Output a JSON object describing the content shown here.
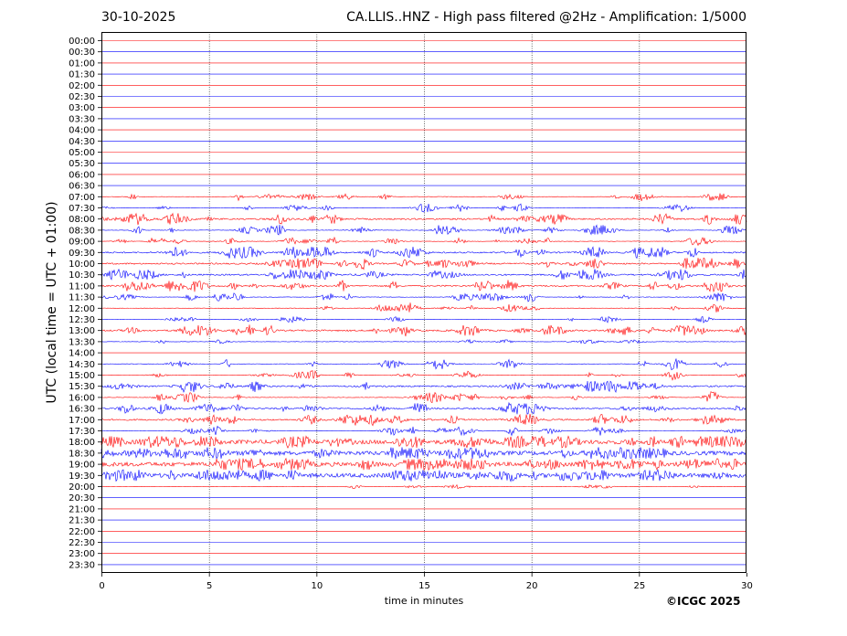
{
  "header": {
    "date": "30-10-2025",
    "title": "CA.LLIS..HNZ - High pass filtered @2Hz - Amplification: 1/5000"
  },
  "footer": {
    "copyright": "©ICGC 2025"
  },
  "chart_data": {
    "type": "seismogram helicorder",
    "xlabel": "time in minutes",
    "ylabel": "UTC (local time = UTC + 01:00)",
    "xlim": [
      0,
      30
    ],
    "xticks": [
      "0",
      "5",
      "10",
      "15",
      "20",
      "25",
      "30"
    ],
    "vertical_gridlines_at": [
      5,
      10,
      15,
      20,
      25
    ],
    "row_labels": [
      "00:00",
      "00:30",
      "01:00",
      "01:30",
      "02:00",
      "02:30",
      "03:00",
      "03:30",
      "04:00",
      "04:30",
      "05:00",
      "05:30",
      "06:00",
      "06:30",
      "07:00",
      "07:30",
      "08:00",
      "08:30",
      "09:00",
      "09:30",
      "10:00",
      "10:30",
      "11:00",
      "11:30",
      "12:00",
      "12:30",
      "13:00",
      "13:30",
      "14:00",
      "14:30",
      "15:00",
      "15:30",
      "16:00",
      "16:30",
      "17:00",
      "17:30",
      "18:00",
      "18:30",
      "19:00",
      "19:30",
      "20:00",
      "20:30",
      "21:00",
      "21:30",
      "22:00",
      "22:30",
      "23:00",
      "23:30"
    ],
    "row_colors": [
      "#ff0000",
      "#0000ff"
    ],
    "activity_level_by_row": [
      0,
      0,
      0,
      0,
      0,
      0,
      0,
      0,
      0,
      0,
      0,
      0,
      0,
      0,
      3,
      3,
      5,
      4,
      4,
      6,
      5,
      5,
      6,
      4,
      3,
      2,
      6,
      1,
      0,
      4,
      3,
      5,
      4,
      5,
      5,
      4,
      8,
      8,
      8,
      7,
      1,
      0,
      0,
      0,
      0,
      0,
      0,
      0
    ]
  }
}
